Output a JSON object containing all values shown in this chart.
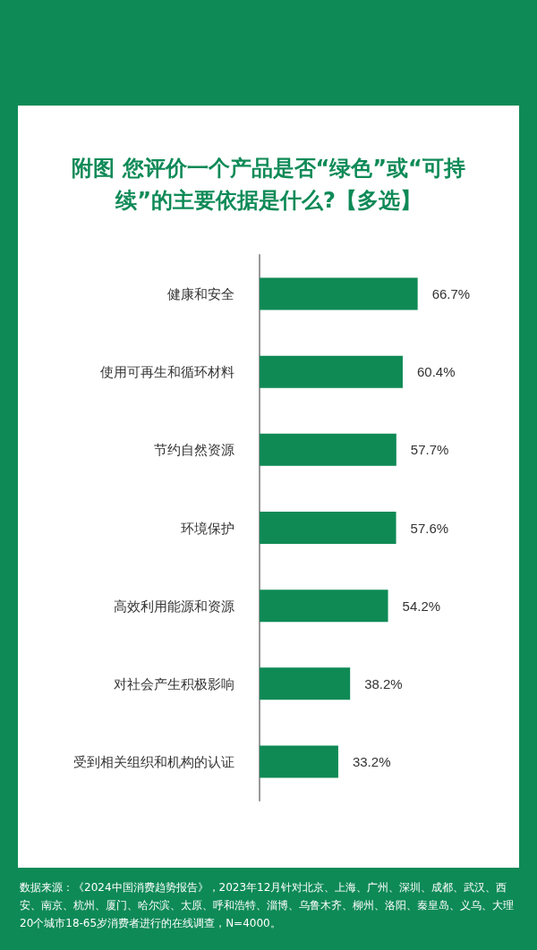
{
  "chart_data": {
    "type": "bar",
    "orientation": "horizontal",
    "title": "附图 您评价一个产品是否“绿色”或“可持续”的主要依据是什么?【多选】",
    "categories": [
      "健康和安全",
      "使用可再生和循环材料",
      "节约自然资源",
      "环境保护",
      "高效利用能源和资源",
      "对社会产生积极影响",
      "受到相关组织和机构的认证"
    ],
    "values": [
      66.7,
      60.4,
      57.7,
      57.6,
      54.2,
      38.2,
      33.2
    ],
    "value_labels": [
      "66.7%",
      "60.4%",
      "57.7%",
      "57.6%",
      "54.2%",
      "38.2%",
      "33.2%"
    ],
    "color": "#0f8a55",
    "annotations": [
      "数据来源：《2024中国消费趋势报告》，2023年12月针对北京、上海、广州、深圳、成都、武汉、西安、南京、杭州、厦门、哈尔滨、太原、呼和浩特、淄博、乌鲁木齐、柳州、洛阳、秦皇岛、义乌、大理20个城市18-65岁消费者进行的在线调查，N=4000。"
    ]
  }
}
